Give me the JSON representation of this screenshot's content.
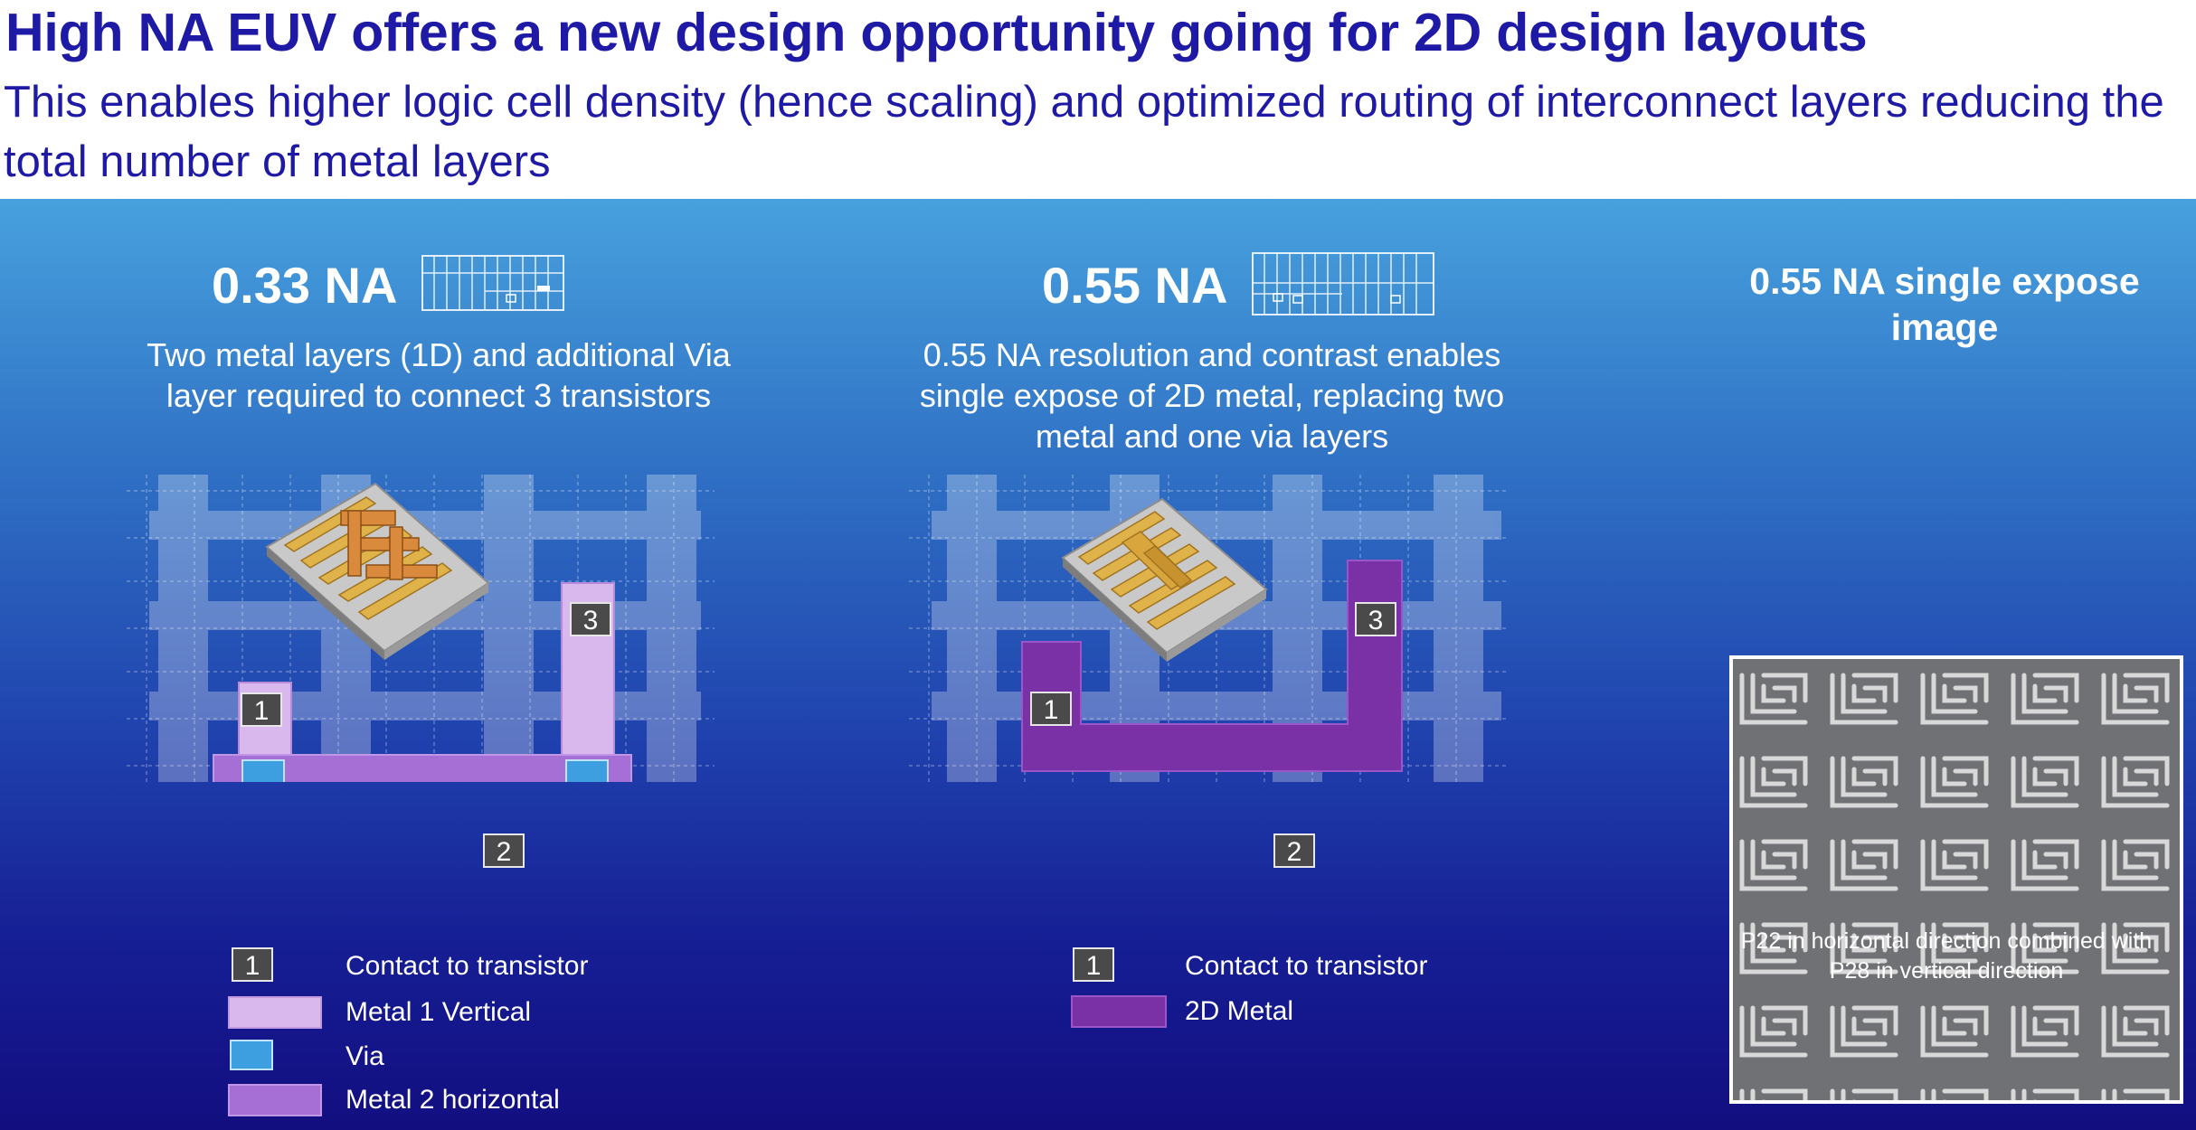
{
  "header": {
    "title": "High NA EUV offers a new design opportunity going for 2D design layouts",
    "subtitle": "This enables higher logic cell density (hence scaling) and optimized routing of interconnect layers reducing the total number of metal layers"
  },
  "left": {
    "heading": "0.33 NA",
    "description": "Two metal layers (1D) and additional Via layer required to connect 3 transistors",
    "labels": [
      "1",
      "2",
      "3"
    ],
    "legend": [
      {
        "swatch": "number",
        "number": "1",
        "text": "Contact to transistor"
      },
      {
        "swatch": "metal1",
        "text": "Metal 1 Vertical"
      },
      {
        "swatch": "via",
        "text": "Via"
      },
      {
        "swatch": "metal2",
        "text": "Metal 2 horizontal"
      }
    ]
  },
  "middle": {
    "heading": "0.55 NA",
    "description": "0.55 NA resolution and contrast enables single expose of 2D metal, replacing two metal and one via layers",
    "labels": [
      "1",
      "2",
      "3"
    ],
    "legend": [
      {
        "swatch": "number",
        "number": "1",
        "text": "Contact to transistor"
      },
      {
        "swatch": "metal2d",
        "text": "2D Metal"
      }
    ]
  },
  "right": {
    "heading": "0.55 NA single expose image",
    "caption": "P22 in horizontal direction combined with P28 in vertical direction"
  },
  "colors": {
    "title": "#1f1aa5",
    "metal1": "#d9b8ee",
    "metal2": "#a66fd6",
    "via": "#3d9fe0",
    "metal2d": "#7a31a5",
    "numberBox": "#4a4a4a"
  },
  "icons": [
    "chip-3d-icon",
    "layout-thumbnail-icon",
    "sem-image"
  ]
}
